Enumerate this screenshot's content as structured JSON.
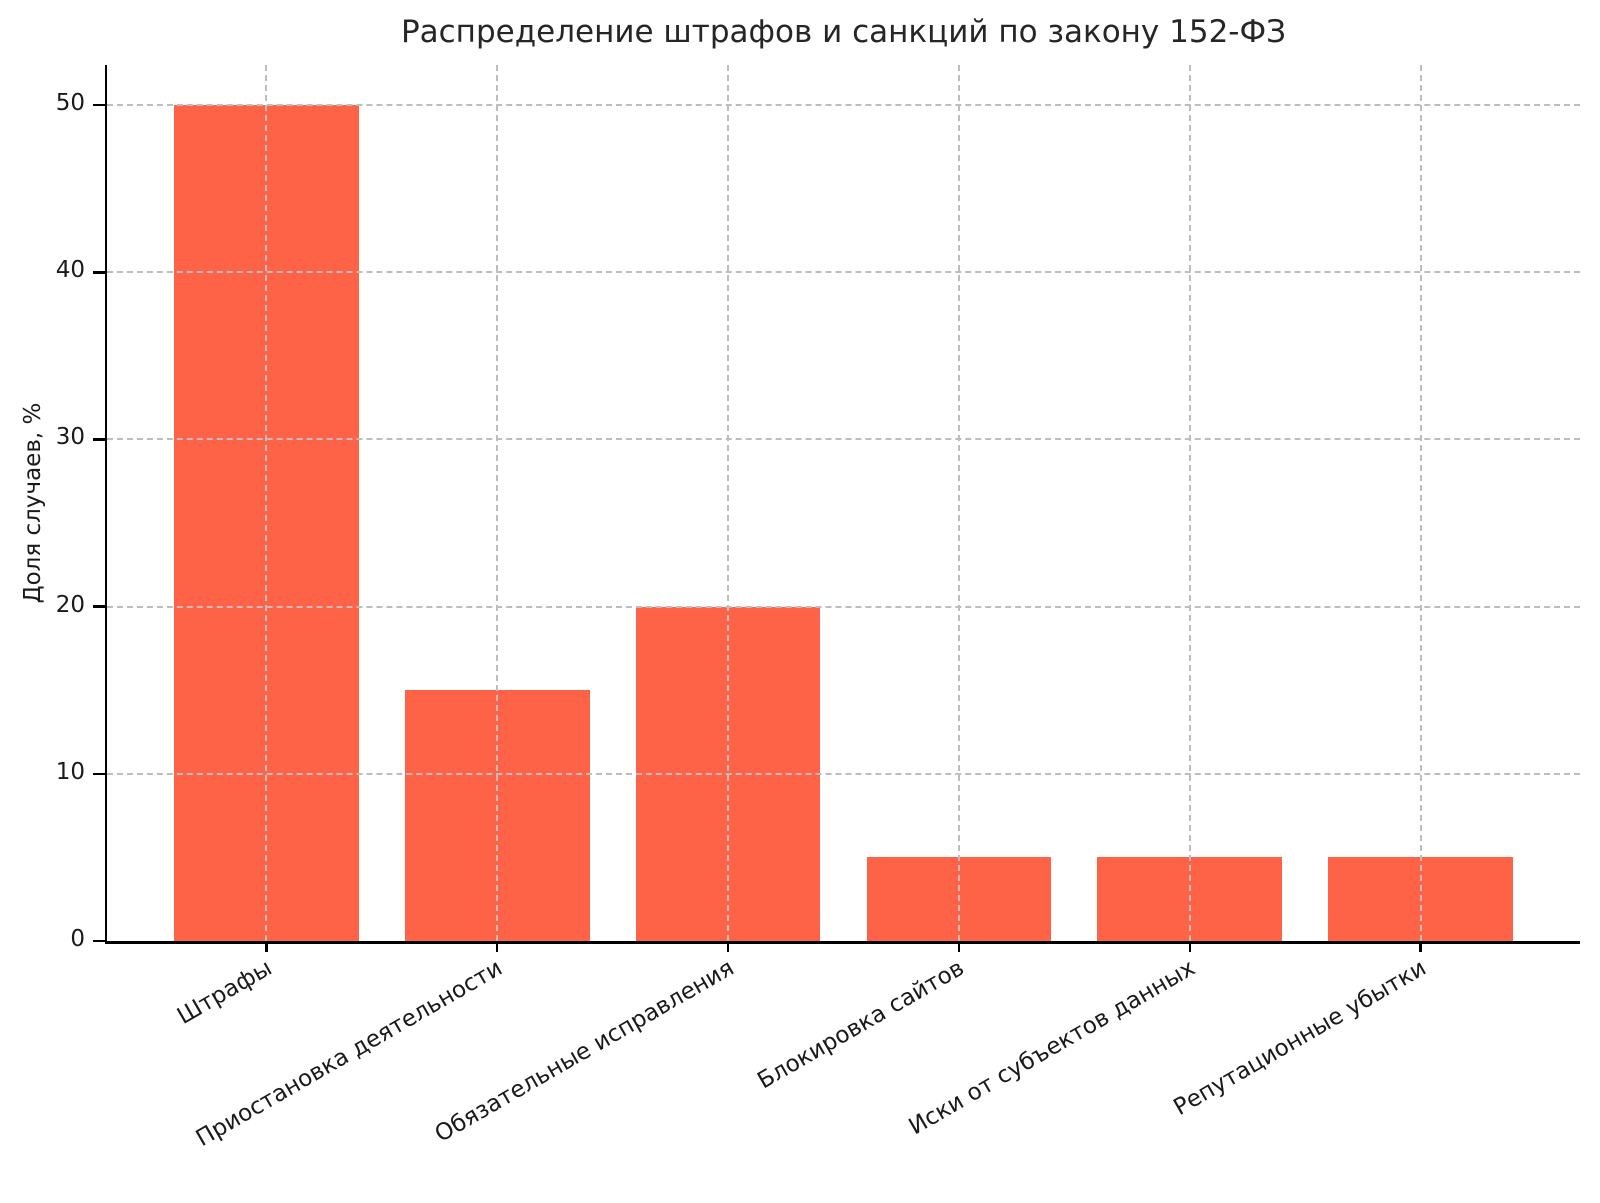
{
  "chart_data": {
    "type": "bar",
    "title": "Распределение штрафов и санкций по закону 152-ФЗ",
    "xlabel": "",
    "ylabel": "Доля случаев, %",
    "categories": [
      "Штрафы",
      "Приостановка деятельности",
      "Обязательные исправления",
      "Блокировка сайтов",
      "Иски от субъектов данных",
      "Репутационные убытки"
    ],
    "values": [
      50,
      15,
      20,
      5,
      5,
      5
    ],
    "yticks": [
      0,
      10,
      20,
      30,
      40,
      50
    ],
    "ylim": [
      0,
      52.4
    ],
    "bar_color": "#FF6347",
    "grid_color": "#bdbdbd",
    "grid_style": "dashed",
    "legend": "none",
    "x_tick_rotation_deg": 30
  }
}
